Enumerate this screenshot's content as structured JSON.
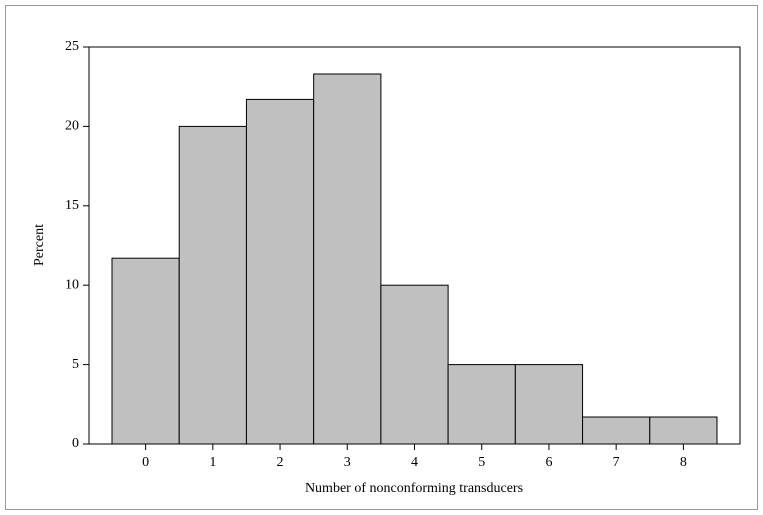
{
  "chart_data": {
    "type": "bar",
    "x_label": "Number of nonconforming transducers",
    "y_label": "Percent",
    "categories": [
      "0",
      "1",
      "2",
      "3",
      "4",
      "5",
      "6",
      "7",
      "8"
    ],
    "values": [
      11.7,
      20,
      21.7,
      23.3,
      10,
      5,
      5,
      1.7,
      1.7
    ],
    "color": "#c0c0c0",
    "ylim": [
      0,
      25
    ],
    "yticks": [
      0,
      5,
      10,
      15,
      20,
      25
    ],
    "grid": false
  }
}
